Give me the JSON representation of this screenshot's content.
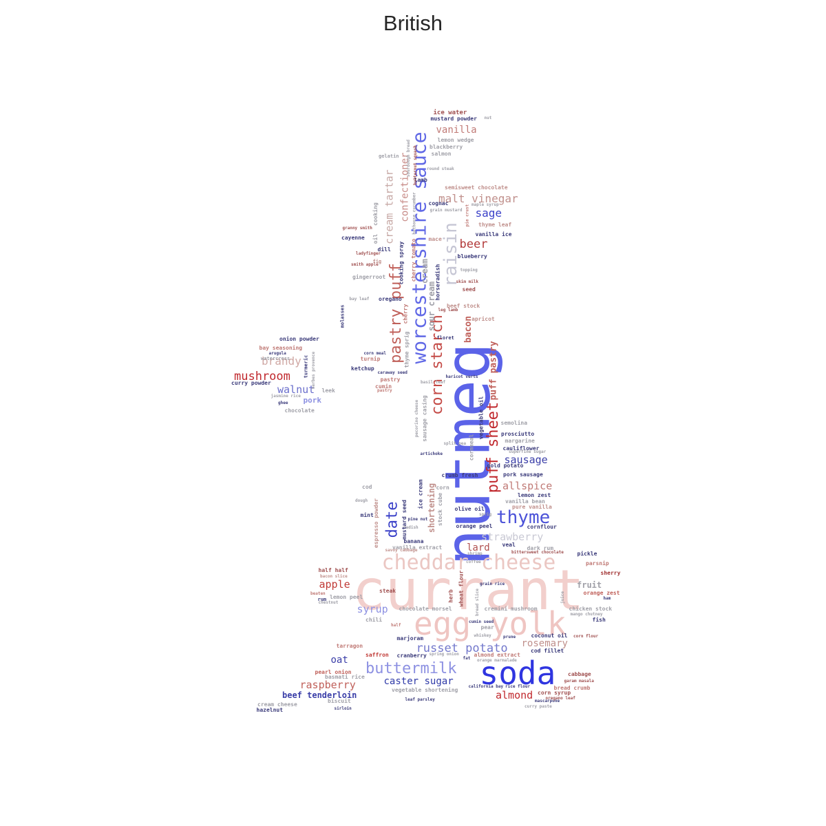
{
  "title": "British",
  "palette": {
    "red": "#c0282d",
    "dark_red": "#a23030",
    "pink": "#e7b7b3",
    "light_pink": "#f3d3d0",
    "blue": "#5b63e8",
    "dark_blue": "#2b2fa8",
    "periwinkle": "#8d91e2",
    "gray": "#a0a0a8",
    "mauve": "#b88c8c",
    "navy": "#3a3a7a"
  },
  "words": [
    {
      "text": "currant",
      "color": "#f2cfcc"
    },
    {
      "text": "nutmeg",
      "color": "#5b63e8"
    },
    {
      "text": "soda",
      "color": "#2f35e0"
    },
    {
      "text": "egg yolk",
      "color": "#efc5c2"
    },
    {
      "text": "cheddar cheese",
      "color": "#ebc7c3"
    },
    {
      "text": "worcestershire sauce",
      "color": "#6169e6"
    },
    {
      "text": "raisin",
      "color": "#c6c6d4"
    },
    {
      "text": "pastry puff",
      "color": "#c0605a"
    },
    {
      "text": "corn starch",
      "color": "#c44a46"
    },
    {
      "text": "puff sheet",
      "color": "#c0282d"
    },
    {
      "text": "buttermilk",
      "color": "#8d91e2"
    },
    {
      "text": "thyme",
      "color": "#4b52d8"
    },
    {
      "text": "date",
      "color": "#3a40c8"
    },
    {
      "text": "russet potato",
      "color": "#7378cc"
    },
    {
      "text": "malt vinegar",
      "color": "#c0908c"
    },
    {
      "text": "cream tartar",
      "color": "#c7a9a6"
    },
    {
      "text": "confectioner",
      "color": "#c78a86"
    },
    {
      "text": "beer",
      "color": "#b23a3a"
    },
    {
      "text": "sage",
      "color": "#3a40c8"
    },
    {
      "text": "vanilla",
      "color": "#c07a76"
    },
    {
      "text": "mushroom",
      "color": "#c0282d"
    },
    {
      "text": "brandy",
      "color": "#d0a8a4"
    },
    {
      "text": "walnut",
      "color": "#6a6ecc"
    },
    {
      "text": "sausage",
      "color": "#3a3ea8"
    },
    {
      "text": "allspice",
      "color": "#c07a76"
    },
    {
      "text": "strawberry",
      "color": "#c9c9d4"
    },
    {
      "text": "raspberry",
      "color": "#c0605a"
    },
    {
      "text": "caster sugar",
      "color": "#2f3aa8"
    },
    {
      "text": "almond",
      "color": "#c0282d"
    },
    {
      "text": "apple",
      "color": "#c03a36"
    },
    {
      "text": "syrup",
      "color": "#8d91e2"
    },
    {
      "text": "rosemary",
      "color": "#c0908c"
    },
    {
      "text": "lard",
      "color": "#b05050"
    },
    {
      "text": "shortening",
      "color": "#c0908c"
    },
    {
      "text": "bacon",
      "color": "#c0605a"
    },
    {
      "text": "puff pastry",
      "color": "#c0605a"
    },
    {
      "text": "cream",
      "color": "#a0a0a8"
    },
    {
      "text": "sour cream",
      "color": "#a0a0a8"
    },
    {
      "text": "oat",
      "color": "#3a3ea8"
    },
    {
      "text": "beef tenderloin",
      "color": "#3a3ea8"
    },
    {
      "text": "fruit",
      "color": "#a0a0a8"
    },
    {
      "text": "pork",
      "color": "#8d91e2"
    },
    {
      "text": "ice water",
      "color": "#a05050"
    },
    {
      "text": "mustard powder",
      "color": "#3a3a7a"
    },
    {
      "text": "nut",
      "color": "#a0a0a8"
    },
    {
      "text": "lemon wedge",
      "color": "#a0a0a8"
    },
    {
      "text": "blackberry",
      "color": "#a0a0a8"
    },
    {
      "text": "salmon",
      "color": "#a0a0a8"
    },
    {
      "text": "gelatin",
      "color": "#a0a0a8"
    },
    {
      "text": "round steak",
      "color": "#a0a0a8"
    },
    {
      "text": "lamb",
      "color": "#3a3a7a"
    },
    {
      "text": "semisweet chocolate",
      "color": "#c0908c"
    },
    {
      "text": "cognac",
      "color": "#3a3a7a"
    },
    {
      "text": "grain mustard",
      "color": "#a0a0a8"
    },
    {
      "text": "maple syrup",
      "color": "#a0a0a8"
    },
    {
      "text": "thyme leaf",
      "color": "#c0908c"
    },
    {
      "text": "vanilla ice",
      "color": "#3a3a7a"
    },
    {
      "text": "granny smith",
      "color": "#a05050"
    },
    {
      "text": "cayenne",
      "color": "#3a3a7a"
    },
    {
      "text": "mace",
      "color": "#c0908c"
    },
    {
      "text": "blueberry",
      "color": "#3a3a7a"
    },
    {
      "text": "dill",
      "color": "#3a3a7a"
    },
    {
      "text": "ladyfinger",
      "color": "#a05050"
    },
    {
      "text": "fig",
      "color": "#c0908c"
    },
    {
      "text": "smith apple",
      "color": "#a05050"
    },
    {
      "text": "topping",
      "color": "#a0a0a8"
    },
    {
      "text": "skim milk",
      "color": "#a05050"
    },
    {
      "text": "gingerroot",
      "color": "#a0a0a8"
    },
    {
      "text": "seed",
      "color": "#a05050"
    },
    {
      "text": "bay leaf",
      "color": "#a0a0a8"
    },
    {
      "text": "oregano",
      "color": "#3a3a7a"
    },
    {
      "text": "beef stock",
      "color": "#c0908c"
    },
    {
      "text": "leg lamb",
      "color": "#a05050"
    },
    {
      "text": "apricot",
      "color": "#c0908c"
    },
    {
      "text": "molasses",
      "color": "#3a3a7a"
    },
    {
      "text": "onion powder",
      "color": "#3a3a7a"
    },
    {
      "text": "bay seasoning",
      "color": "#c07a76"
    },
    {
      "text": "arugula",
      "color": "#3a3a7a"
    },
    {
      "text": "watercress",
      "color": "#a0a0a8"
    },
    {
      "text": "turmeric",
      "color": "#3a3a7a"
    },
    {
      "text": "herbes provence",
      "color": "#a0a0a8"
    },
    {
      "text": "curry powder",
      "color": "#3a3a7a"
    },
    {
      "text": "jasmine rice",
      "color": "#a0a0a8"
    },
    {
      "text": "ghee",
      "color": "#3a3a7a"
    },
    {
      "text": "chocolate",
      "color": "#a0a0a8"
    },
    {
      "text": "leek",
      "color": "#a0a0a8"
    },
    {
      "text": "floret",
      "color": "#3a3a7a"
    },
    {
      "text": "corn meal",
      "color": "#3a3a7a"
    },
    {
      "text": "turnip",
      "color": "#c07a76"
    },
    {
      "text": "ketchup",
      "color": "#3a3a7a"
    },
    {
      "text": "caraway seed",
      "color": "#3a3a7a"
    },
    {
      "text": "pastry",
      "color": "#c07a76"
    },
    {
      "text": "cumin",
      "color": "#c07a76"
    },
    {
      "text": "basil leaf",
      "color": "#a0a0a8"
    },
    {
      "text": "haricot verts",
      "color": "#3a3a7a"
    },
    {
      "text": "semolina",
      "color": "#a0a0a8"
    },
    {
      "text": "prosciutto",
      "color": "#3a3a7a"
    },
    {
      "text": "margarine",
      "color": "#a0a0a8"
    },
    {
      "text": "cauliflower",
      "color": "#3a3a7a"
    },
    {
      "text": "superfine sugar",
      "color": "#a0a0a8"
    },
    {
      "text": "split pea",
      "color": "#a0a0a8"
    },
    {
      "text": "artichoke",
      "color": "#3a3a7a"
    },
    {
      "text": "gold potato",
      "color": "#3a3a7a"
    },
    {
      "text": "crumb fresh",
      "color": "#3a3a7a"
    },
    {
      "text": "pork sausage",
      "color": "#3a3a7a"
    },
    {
      "text": "lemon zest",
      "color": "#3a3a7a"
    },
    {
      "text": "vanilla bean",
      "color": "#a0a0a8"
    },
    {
      "text": "pure vanilla",
      "color": "#c0908c"
    },
    {
      "text": "cornflour",
      "color": "#3a3a7a"
    },
    {
      "text": "olive oil",
      "color": "#3a3a7a"
    },
    {
      "text": "orange peel",
      "color": "#3a3a7a"
    },
    {
      "text": "corn",
      "color": "#a0a0a8"
    },
    {
      "text": "cod",
      "color": "#a0a0a8"
    },
    {
      "text": "dough",
      "color": "#a0a0a8"
    },
    {
      "text": "mint",
      "color": "#3a3a7a"
    },
    {
      "text": "pine nut",
      "color": "#3a3a7a"
    },
    {
      "text": "radish",
      "color": "#a0a0a8"
    },
    {
      "text": "sprig",
      "color": "#a0a0a8"
    },
    {
      "text": "banana",
      "color": "#3a3a7a"
    },
    {
      "text": "vanilla extract",
      "color": "#a0a0a8"
    },
    {
      "text": "veal",
      "color": "#3a3a7a"
    },
    {
      "text": "dark rum",
      "color": "#a0a0a8"
    },
    {
      "text": "savoy cabbage",
      "color": "#c0908c"
    },
    {
      "text": "shrimp",
      "color": "#a0a0a8"
    },
    {
      "text": "bittersweet chocolate",
      "color": "#a05050"
    },
    {
      "text": "pickle",
      "color": "#3a3a7a"
    },
    {
      "text": "coffee",
      "color": "#a0a0a8"
    },
    {
      "text": "parsnip",
      "color": "#c07a76"
    },
    {
      "text": "half half",
      "color": "#a05050"
    },
    {
      "text": "bacon slice",
      "color": "#c0908c"
    },
    {
      "text": "sherry",
      "color": "#a03030"
    },
    {
      "text": "grain rice",
      "color": "#3a3a7a"
    },
    {
      "text": "steak",
      "color": "#a05050"
    },
    {
      "text": "herb",
      "color": "#a05050"
    },
    {
      "text": "wheat flour",
      "color": "#a05050"
    },
    {
      "text": "beaten",
      "color": "#c07a76"
    },
    {
      "text": "lemon peel",
      "color": "#a0a0a8"
    },
    {
      "text": "rum",
      "color": "#3a3a7a"
    },
    {
      "text": "chestnut",
      "color": "#a0a0a8"
    },
    {
      "text": "orange zest",
      "color": "#c0605a"
    },
    {
      "text": "ham",
      "color": "#3a3a7a"
    },
    {
      "text": "chocolate morsel",
      "color": "#a0a0a8"
    },
    {
      "text": "cremini mushroom",
      "color": "#a0a0a8"
    },
    {
      "text": "chicken stock",
      "color": "#a0a0a8"
    },
    {
      "text": "mango chutney",
      "color": "#a0a0a8"
    },
    {
      "text": "bread slice",
      "color": "#a0a0a8"
    },
    {
      "text": "juice",
      "color": "#a0a0a8"
    },
    {
      "text": "fish",
      "color": "#3a3a7a"
    },
    {
      "text": "chili",
      "color": "#a0a0a8"
    },
    {
      "text": "half",
      "color": "#c07a76"
    },
    {
      "text": "cumin seed",
      "color": "#3a3a7a"
    },
    {
      "text": "pear",
      "color": "#a0a0a8"
    },
    {
      "text": "prune",
      "color": "#3a3a7a"
    },
    {
      "text": "whiskey",
      "color": "#a0a0a8"
    },
    {
      "text": "coconut oil",
      "color": "#3a3a7a"
    },
    {
      "text": "corn flour",
      "color": "#a05050"
    },
    {
      "text": "marjoram",
      "color": "#3a3a7a"
    },
    {
      "text": "tarragon",
      "color": "#c07a76"
    },
    {
      "text": "saffron",
      "color": "#c03a36"
    },
    {
      "text": "cranberry",
      "color": "#3a3a7a"
    },
    {
      "text": "spring onion",
      "color": "#a0a0a8"
    },
    {
      "text": "fat",
      "color": "#3a3a7a"
    },
    {
      "text": "almond extract",
      "color": "#c07a76"
    },
    {
      "text": "orange marmalade",
      "color": "#a0a0a8"
    },
    {
      "text": "cod fillet",
      "color": "#3a3a7a"
    },
    {
      "text": "pearl onion",
      "color": "#c0605a"
    },
    {
      "text": "basmati rice",
      "color": "#a0a0a8"
    },
    {
      "text": "biscuit",
      "color": "#a0a0a8"
    },
    {
      "text": "vegetable shortening",
      "color": "#a0a0a8"
    },
    {
      "text": "california bay",
      "color": "#3a3a7a"
    },
    {
      "text": "rice flour",
      "color": "#3a3a7a"
    },
    {
      "text": "corn syrup",
      "color": "#a05050"
    },
    {
      "text": "cabbage",
      "color": "#a05050"
    },
    {
      "text": "garam masala",
      "color": "#a05050"
    },
    {
      "text": "bread crumb",
      "color": "#c07a76"
    },
    {
      "text": "mascarpone",
      "color": "#3a3a7a"
    },
    {
      "text": "oregano leaf",
      "color": "#a05050"
    },
    {
      "text": "leaf parsley",
      "color": "#3a3a7a"
    },
    {
      "text": "curry paste",
      "color": "#a0a0a8"
    },
    {
      "text": "cream cheese",
      "color": "#a0a0a8"
    },
    {
      "text": "hazelnut",
      "color": "#3a3a7a"
    },
    {
      "text": "sirloin",
      "color": "#3a3a7a"
    },
    {
      "text": "cooking",
      "color": "#a0a0a8"
    },
    {
      "text": "oil",
      "color": "#a0a0a8"
    },
    {
      "text": "cooking spray",
      "color": "#3a3a7a"
    },
    {
      "text": "cherry tomato",
      "color": "#c07a76"
    },
    {
      "text": "horseradish",
      "color": "#3a3a7a"
    },
    {
      "text": "cherry",
      "color": "#c07a76"
    },
    {
      "text": "thyme sprig",
      "color": "#a0a0a8"
    },
    {
      "text": "sausage casing",
      "color": "#a0a0a8"
    },
    {
      "text": "pecorino cheese",
      "color": "#a0a0a8"
    },
    {
      "text": "vegetable oil",
      "color": "#3a3a7a"
    },
    {
      "text": "cornmeal",
      "color": "#a0a0a8"
    },
    {
      "text": "ice cream",
      "color": "#3a3a7a"
    },
    {
      "text": "stock cube",
      "color": "#a0a0a8"
    },
    {
      "text": "espresso powder",
      "color": "#c0908c"
    },
    {
      "text": "mustard seed",
      "color": "#3a3a7a"
    },
    {
      "text": "pie crust",
      "color": "#c07a76"
    },
    {
      "text": "sourdough bread",
      "color": "#a0a0a8"
    },
    {
      "text": "butternut squash",
      "color": "#a05050"
    },
    {
      "text": "hothouse cucumber",
      "color": "#a0a0a8"
    },
    {
      "text": "pastry",
      "color": "#c07a76"
    }
  ]
}
